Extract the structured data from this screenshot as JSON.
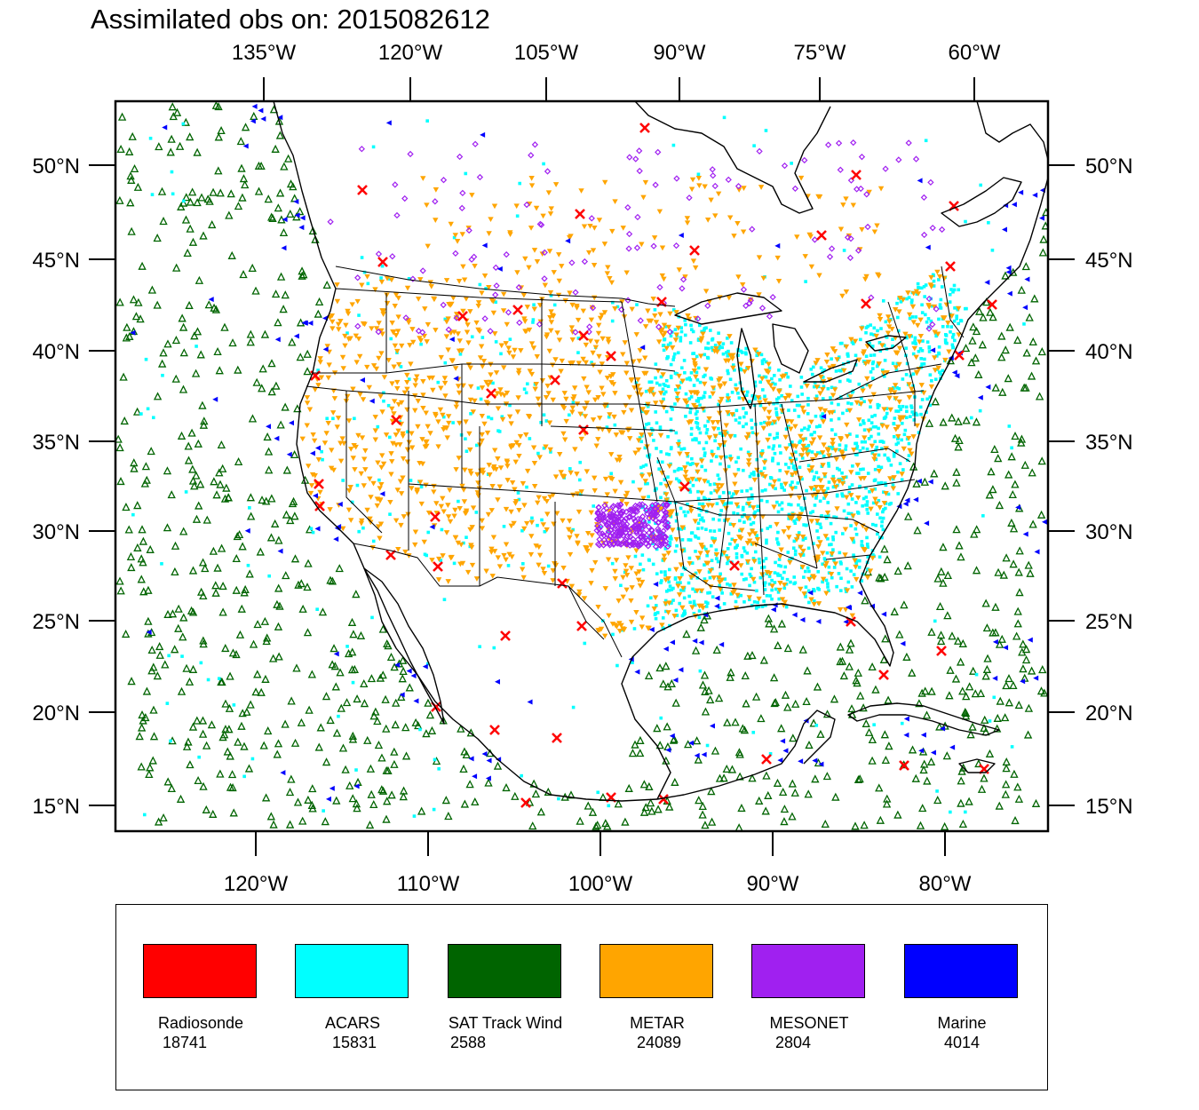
{
  "title": "Assimilated obs on: 2015082612",
  "top_axis_labels": [
    "135°W",
    "120°W",
    "105°W",
    "90°W",
    "75°W",
    "60°W"
  ],
  "bottom_axis_labels": [
    "120°W",
    "110°W",
    "100°W",
    "90°W",
    "80°W"
  ],
  "left_axis_labels": [
    "50°N",
    "45°N",
    "40°N",
    "35°N",
    "30°N",
    "25°N",
    "20°N",
    "15°N"
  ],
  "right_axis_labels": [
    "50°N",
    "45°N",
    "40°N",
    "35°N",
    "30°N",
    "25°N",
    "20°N",
    "15°N"
  ],
  "legend": [
    {
      "label": "Radiosonde",
      "count": "18741",
      "color": "#ff0000"
    },
    {
      "label": "ACARS",
      "count": "15831",
      "color": "#00ffff"
    },
    {
      "label": "SAT Track Wind",
      "count": "2588",
      "color": "#006400"
    },
    {
      "label": "METAR",
      "count": "24089",
      "color": "#ffa500"
    },
    {
      "label": "MESONET",
      "count": "2804",
      "color": "#a020f0"
    },
    {
      "label": "Marine",
      "count": "4014",
      "color": "#0000ff"
    }
  ],
  "colors": {
    "radiosonde": "#ff0000",
    "acars": "#00ffff",
    "sat_track_wind": "#006400",
    "metar": "#ffa500",
    "mesonet": "#a020f0",
    "marine": "#0000ff"
  }
}
